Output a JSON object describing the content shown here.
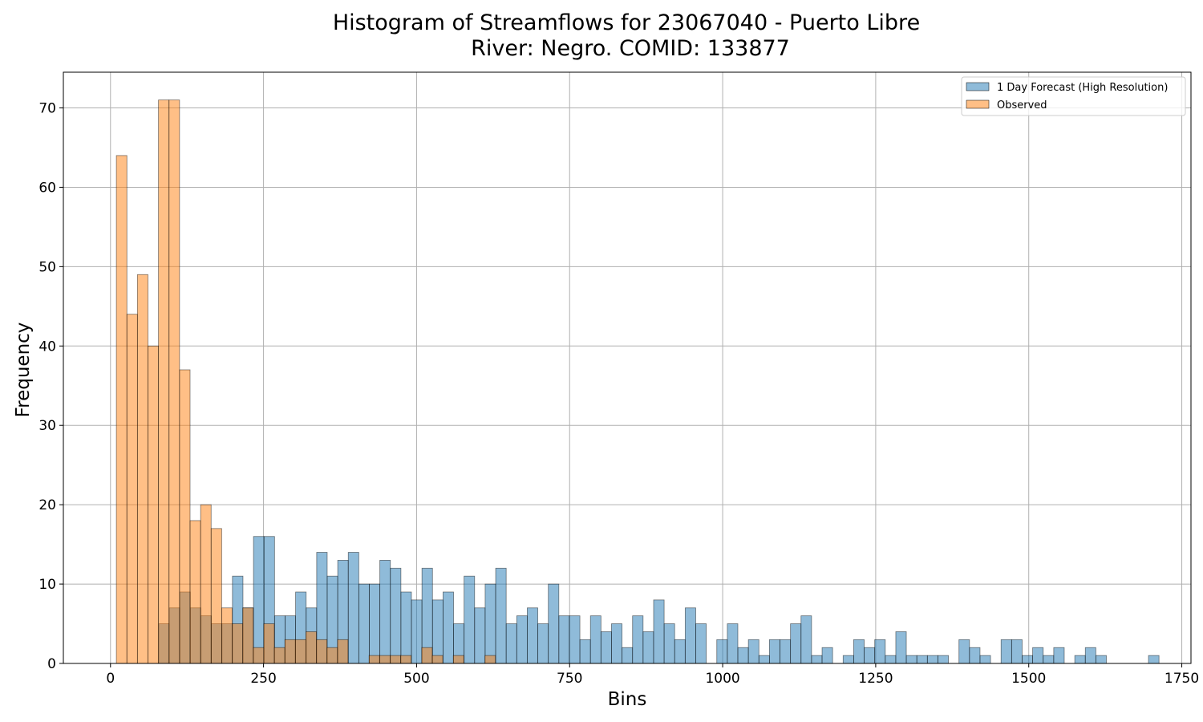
{
  "chart_data": {
    "type": "histogram",
    "title_line1": "Histogram of Streamflows for 23067040 - Puerto Libre",
    "title_line2": "River: Negro. COMID: 133877",
    "xlabel": "Bins",
    "ylabel": "Frequency",
    "xlim": [
      -77,
      1765
    ],
    "ylim": [
      0,
      74.5
    ],
    "xticks": [
      0,
      250,
      500,
      750,
      1000,
      1250,
      1500,
      1750
    ],
    "yticks": [
      0,
      10,
      20,
      30,
      40,
      50,
      60,
      70
    ],
    "grid": true,
    "legend_position": "top-right",
    "bin_width": 17.2,
    "series": [
      {
        "name": "1 Day Forecast (High Resolution)",
        "color": "#1f77b4",
        "alpha": 0.5,
        "bin_start": 78.8,
        "counts": [
          5,
          7,
          9,
          7,
          6,
          5,
          5,
          11,
          7,
          16,
          16,
          6,
          6,
          9,
          7,
          14,
          11,
          13,
          14,
          10,
          10,
          13,
          12,
          9,
          8,
          12,
          8,
          9,
          5,
          11,
          7,
          10,
          12,
          5,
          6,
          7,
          5,
          10,
          6,
          6,
          3,
          6,
          4,
          5,
          2,
          6,
          4,
          8,
          5,
          3,
          7,
          5,
          0,
          3,
          5,
          2,
          3,
          1,
          3,
          3,
          5,
          6,
          1,
          2,
          0,
          1,
          3,
          2,
          3,
          1,
          4,
          1,
          1,
          1,
          1,
          0,
          3,
          2,
          1,
          0,
          3,
          3,
          1,
          2,
          1,
          2,
          0,
          1,
          2,
          1,
          0,
          0,
          0,
          0,
          1
        ]
      },
      {
        "name": "Observed",
        "color": "#ff7f0e",
        "alpha": 0.5,
        "bin_start": 9.6,
        "counts": [
          64,
          44,
          49,
          40,
          71,
          71,
          37,
          18,
          20,
          17,
          7,
          5,
          7,
          2,
          5,
          2,
          3,
          3,
          4,
          3,
          2,
          3,
          0,
          0,
          1,
          1,
          1,
          1,
          0,
          2,
          1,
          0,
          1,
          0,
          0,
          1
        ]
      }
    ]
  }
}
